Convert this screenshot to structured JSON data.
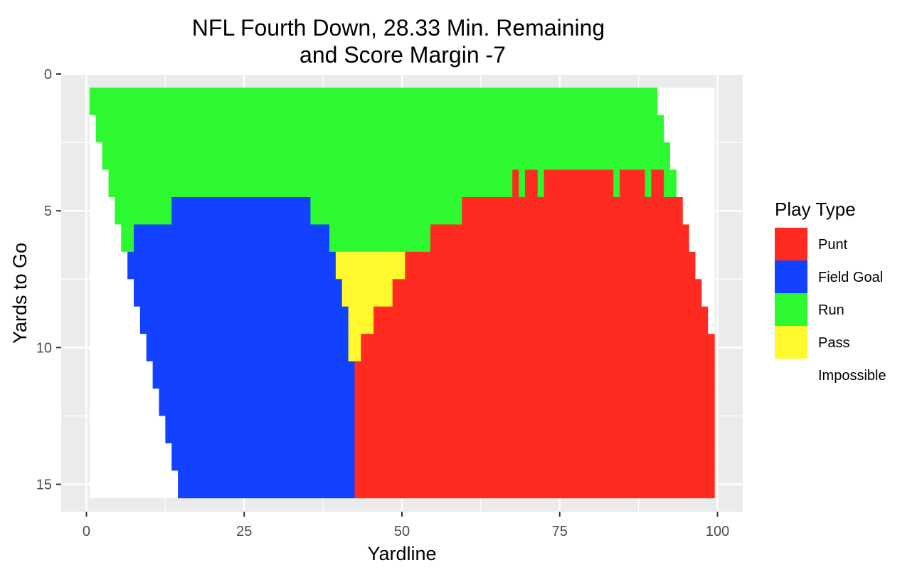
{
  "chart_data": {
    "type": "heatmap",
    "title": "NFL Fourth Down, 28.33 Min. Remaining",
    "subtitle": "and Score Margin -7",
    "xlabel": "Yardline",
    "ylabel": "Yards to Go",
    "xlim": [
      -4,
      104
    ],
    "ylim": [
      -0.0,
      16.0
    ],
    "y_reversed": true,
    "grid": true,
    "x_ticks": [
      0,
      25,
      50,
      75,
      100
    ],
    "x_tick_labels": [
      "0",
      "25",
      "50",
      "75",
      "100"
    ],
    "y_ticks": [
      0,
      5,
      10,
      15
    ],
    "y_tick_labels": [
      "0",
      "5",
      "10",
      "15"
    ],
    "legend": {
      "title": "Play Type",
      "position": "right",
      "entries": [
        {
          "label": "Punt",
          "color": "#ff2a20"
        },
        {
          "label": "Field Goal",
          "color": "#1242ff"
        },
        {
          "label": "Run",
          "color": "#2cf92f"
        },
        {
          "label": "Pass",
          "color": "#fff82f"
        },
        {
          "label": "Impossible",
          "color": "#ffffff"
        }
      ]
    },
    "rows": [
      {
        "ytg": 1,
        "segments": [
          {
            "type": "Run",
            "x0": 0.5,
            "x1": 90.5
          },
          {
            "type": "Impossible",
            "x0": 90.5,
            "x1": 99.5
          }
        ]
      },
      {
        "ytg": 2,
        "segments": [
          {
            "type": "Impossible",
            "x0": 0.5,
            "x1": 1.5
          },
          {
            "type": "Run",
            "x0": 1.5,
            "x1": 91.5
          },
          {
            "type": "Impossible",
            "x0": 91.5,
            "x1": 99.5
          }
        ]
      },
      {
        "ytg": 3,
        "segments": [
          {
            "type": "Impossible",
            "x0": 0.5,
            "x1": 2.5
          },
          {
            "type": "Run",
            "x0": 2.5,
            "x1": 92.5
          },
          {
            "type": "Impossible",
            "x0": 92.5,
            "x1": 99.5
          }
        ]
      },
      {
        "ytg": 4,
        "segments": [
          {
            "type": "Impossible",
            "x0": 0.5,
            "x1": 3.5
          },
          {
            "type": "Run",
            "x0": 3.5,
            "x1": 67.5
          },
          {
            "type": "Punt",
            "x0": 67.5,
            "x1": 68.5
          },
          {
            "type": "Run",
            "x0": 68.5,
            "x1": 69.5
          },
          {
            "type": "Punt",
            "x0": 69.5,
            "x1": 71.5
          },
          {
            "type": "Run",
            "x0": 71.5,
            "x1": 72.5
          },
          {
            "type": "Punt",
            "x0": 72.5,
            "x1": 83.5
          },
          {
            "type": "Run",
            "x0": 83.5,
            "x1": 84.5
          },
          {
            "type": "Punt",
            "x0": 84.5,
            "x1": 88.5
          },
          {
            "type": "Run",
            "x0": 88.5,
            "x1": 89.5
          },
          {
            "type": "Punt",
            "x0": 89.5,
            "x1": 91.5
          },
          {
            "type": "Run",
            "x0": 91.5,
            "x1": 93.5
          },
          {
            "type": "Impossible",
            "x0": 93.5,
            "x1": 99.5
          }
        ]
      },
      {
        "ytg": 5,
        "segments": [
          {
            "type": "Impossible",
            "x0": 0.5,
            "x1": 4.5
          },
          {
            "type": "Run",
            "x0": 4.5,
            "x1": 13.5
          },
          {
            "type": "Field Goal",
            "x0": 13.5,
            "x1": 35.5
          },
          {
            "type": "Run",
            "x0": 35.5,
            "x1": 59.5
          },
          {
            "type": "Punt",
            "x0": 59.5,
            "x1": 94.5
          },
          {
            "type": "Impossible",
            "x0": 94.5,
            "x1": 99.5
          }
        ]
      },
      {
        "ytg": 6,
        "segments": [
          {
            "type": "Impossible",
            "x0": 0.5,
            "x1": 5.5
          },
          {
            "type": "Run",
            "x0": 5.5,
            "x1": 7.5
          },
          {
            "type": "Field Goal",
            "x0": 7.5,
            "x1": 38.5
          },
          {
            "type": "Run",
            "x0": 38.5,
            "x1": 54.5
          },
          {
            "type": "Punt",
            "x0": 54.5,
            "x1": 95.5
          },
          {
            "type": "Impossible",
            "x0": 95.5,
            "x1": 99.5
          }
        ]
      },
      {
        "ytg": 7,
        "segments": [
          {
            "type": "Impossible",
            "x0": 0.5,
            "x1": 6.5
          },
          {
            "type": "Field Goal",
            "x0": 6.5,
            "x1": 39.5
          },
          {
            "type": "Pass",
            "x0": 39.5,
            "x1": 50.5
          },
          {
            "type": "Punt",
            "x0": 50.5,
            "x1": 96.5
          },
          {
            "type": "Impossible",
            "x0": 96.5,
            "x1": 99.5
          }
        ]
      },
      {
        "ytg": 8,
        "segments": [
          {
            "type": "Impossible",
            "x0": 0.5,
            "x1": 7.5
          },
          {
            "type": "Field Goal",
            "x0": 7.5,
            "x1": 40.5
          },
          {
            "type": "Pass",
            "x0": 40.5,
            "x1": 48.5
          },
          {
            "type": "Punt",
            "x0": 48.5,
            "x1": 97.5
          },
          {
            "type": "Impossible",
            "x0": 97.5,
            "x1": 99.5
          }
        ]
      },
      {
        "ytg": 9,
        "segments": [
          {
            "type": "Impossible",
            "x0": 0.5,
            "x1": 8.5
          },
          {
            "type": "Field Goal",
            "x0": 8.5,
            "x1": 41.5
          },
          {
            "type": "Pass",
            "x0": 41.5,
            "x1": 45.5
          },
          {
            "type": "Punt",
            "x0": 45.5,
            "x1": 98.5
          },
          {
            "type": "Impossible",
            "x0": 98.5,
            "x1": 99.5
          }
        ]
      },
      {
        "ytg": 10,
        "segments": [
          {
            "type": "Impossible",
            "x0": 0.5,
            "x1": 9.5
          },
          {
            "type": "Field Goal",
            "x0": 9.5,
            "x1": 41.5
          },
          {
            "type": "Pass",
            "x0": 41.5,
            "x1": 43.5
          },
          {
            "type": "Punt",
            "x0": 43.5,
            "x1": 99.5
          }
        ]
      },
      {
        "ytg": 11,
        "segments": [
          {
            "type": "Impossible",
            "x0": 0.5,
            "x1": 10.5
          },
          {
            "type": "Field Goal",
            "x0": 10.5,
            "x1": 42.5
          },
          {
            "type": "Punt",
            "x0": 42.5,
            "x1": 99.5
          }
        ]
      },
      {
        "ytg": 12,
        "segments": [
          {
            "type": "Impossible",
            "x0": 0.5,
            "x1": 11.5
          },
          {
            "type": "Field Goal",
            "x0": 11.5,
            "x1": 42.5
          },
          {
            "type": "Punt",
            "x0": 42.5,
            "x1": 99.5
          }
        ]
      },
      {
        "ytg": 13,
        "segments": [
          {
            "type": "Impossible",
            "x0": 0.5,
            "x1": 12.5
          },
          {
            "type": "Field Goal",
            "x0": 12.5,
            "x1": 42.5
          },
          {
            "type": "Punt",
            "x0": 42.5,
            "x1": 99.5
          }
        ]
      },
      {
        "ytg": 14,
        "segments": [
          {
            "type": "Impossible",
            "x0": 0.5,
            "x1": 13.5
          },
          {
            "type": "Field Goal",
            "x0": 13.5,
            "x1": 42.5
          },
          {
            "type": "Punt",
            "x0": 42.5,
            "x1": 99.5
          }
        ]
      },
      {
        "ytg": 15,
        "segments": [
          {
            "type": "Impossible",
            "x0": 0.5,
            "x1": 14.5
          },
          {
            "type": "Field Goal",
            "x0": 14.5,
            "x1": 42.5
          },
          {
            "type": "Punt",
            "x0": 42.5,
            "x1": 99.5
          }
        ]
      }
    ]
  }
}
